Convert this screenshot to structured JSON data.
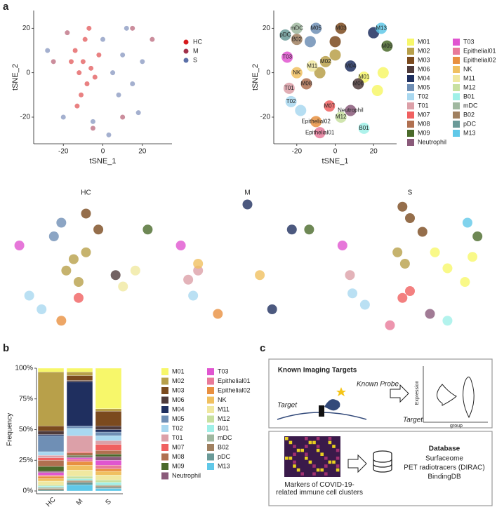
{
  "panel_labels": [
    "a",
    "b",
    "c"
  ],
  "chart_data": [
    {
      "type": "scatter",
      "xlabel": "tSNE_1",
      "ylabel": "tSNE_2",
      "xlim": [
        -35,
        35
      ],
      "ylim": [
        -32,
        28
      ],
      "xticks": [
        -20,
        0,
        20
      ],
      "yticks": [
        -20,
        0,
        20
      ],
      "legend": "right",
      "series": [
        {
          "name": "HC",
          "color": "#d7191c",
          "x": [
            -12,
            -10,
            -8,
            -14,
            -6,
            -11,
            -9,
            -4,
            -16,
            -13,
            -7,
            -2
          ],
          "y": [
            0,
            5,
            -5,
            10,
            2,
            -10,
            15,
            -2,
            5,
            -15,
            20,
            8
          ]
        },
        {
          "name": "M",
          "color": "#a0304a",
          "x": [
            -25,
            10,
            -18,
            25,
            -5,
            15
          ],
          "y": [
            5,
            -20,
            18,
            15,
            -25,
            20
          ]
        },
        {
          "name": "S",
          "color": "#5a6fa8",
          "x": [
            5,
            10,
            15,
            0,
            20,
            -20,
            -28,
            8,
            18,
            -5,
            12,
            3
          ],
          "y": [
            0,
            8,
            -5,
            15,
            5,
            -20,
            10,
            -10,
            -18,
            -22,
            20,
            -28
          ]
        }
      ]
    },
    {
      "type": "scatter",
      "xlabel": "tSNE_1",
      "ylabel": "tSNE_2",
      "xlim": [
        -32,
        32
      ],
      "ylim": [
        -32,
        28
      ],
      "xticks": [
        -20,
        0,
        20
      ],
      "yticks": [
        -20,
        0,
        20
      ],
      "legend": "right",
      "point_labels": true,
      "series": [
        {
          "name": "M01",
          "color": "#f7f76a",
          "x": [
            15,
            22,
            25
          ],
          "y": [
            -2,
            -8,
            0
          ]
        },
        {
          "name": "M02",
          "color": "#b8a04a",
          "x": [
            -5,
            -8,
            0
          ],
          "y": [
            5,
            0,
            8
          ]
        },
        {
          "name": "M03",
          "color": "#7b4a1e",
          "x": [
            3,
            0
          ],
          "y": [
            20,
            14
          ]
        },
        {
          "name": "M06",
          "color": "#4f3b3b",
          "x": [
            12
          ],
          "y": [
            -5
          ]
        },
        {
          "name": "M04",
          "color": "#1f2f5f",
          "x": [
            8,
            20
          ],
          "y": [
            3,
            18
          ]
        },
        {
          "name": "M05",
          "color": "#6f8fb5",
          "x": [
            -10,
            -13
          ],
          "y": [
            20,
            14
          ]
        },
        {
          "name": "T02",
          "color": "#a9d8f0",
          "x": [
            -23,
            -18
          ],
          "y": [
            -13,
            -17
          ]
        },
        {
          "name": "T01",
          "color": "#dca0a8",
          "x": [
            -24
          ],
          "y": [
            -7
          ]
        },
        {
          "name": "M07",
          "color": "#f06060",
          "x": [
            -3
          ],
          "y": [
            -15
          ]
        },
        {
          "name": "M08",
          "color": "#b07050",
          "x": [
            -15
          ],
          "y": [
            -5
          ]
        },
        {
          "name": "M09",
          "color": "#4a6a2a",
          "x": [
            27
          ],
          "y": [
            12
          ]
        },
        {
          "name": "Neutrophil",
          "color": "#8a5a7a",
          "x": [
            8
          ],
          "y": [
            -17
          ]
        },
        {
          "name": "T03",
          "color": "#e055d0",
          "x": [
            -25
          ],
          "y": [
            7
          ]
        },
        {
          "name": "Epithelial01",
          "color": "#e87a9a",
          "x": [
            -8
          ],
          "y": [
            -27
          ]
        },
        {
          "name": "Epithelial02",
          "color": "#e89040",
          "x": [
            -10
          ],
          "y": [
            -22
          ]
        },
        {
          "name": "NK",
          "color": "#f0c060",
          "x": [
            -20
          ],
          "y": [
            0
          ]
        },
        {
          "name": "M11",
          "color": "#f0e8a0",
          "x": [
            -12
          ],
          "y": [
            3
          ]
        },
        {
          "name": "M12",
          "color": "#c8e0a0",
          "x": [
            3
          ],
          "y": [
            -20
          ]
        },
        {
          "name": "B01",
          "color": "#a0f0e8",
          "x": [
            15
          ],
          "y": [
            -25
          ]
        },
        {
          "name": "mDC",
          "color": "#a0b8a0",
          "x": [
            -20
          ],
          "y": [
            20
          ]
        },
        {
          "name": "B02",
          "color": "#a08060",
          "x": [
            -20
          ],
          "y": [
            15
          ]
        },
        {
          "name": "pDC",
          "color": "#6a9a98",
          "x": [
            -26
          ],
          "y": [
            17
          ]
        },
        {
          "name": "M13",
          "color": "#60c8e8",
          "x": [
            24
          ],
          "y": [
            20
          ]
        }
      ]
    },
    {
      "type": "scatter",
      "title": "HC",
      "xlim": [
        -32,
        32
      ],
      "ylim": [
        -32,
        28
      ],
      "series": [
        {
          "color": "#b8a04a",
          "x": [
            -5,
            -8,
            0,
            -3
          ],
          "y": [
            2,
            -3,
            5,
            -8
          ]
        },
        {
          "color": "#6f8fb5",
          "x": [
            -10,
            -13
          ],
          "y": [
            18,
            12
          ]
        },
        {
          "color": "#7b4a1e",
          "x": [
            0,
            5
          ],
          "y": [
            22,
            15
          ]
        },
        {
          "color": "#4a6a2a",
          "x": [
            25
          ],
          "y": [
            15
          ]
        },
        {
          "color": "#a9d8f0",
          "x": [
            -23,
            -18
          ],
          "y": [
            -14,
            -20
          ]
        },
        {
          "color": "#e055d0",
          "x": [
            -27
          ],
          "y": [
            8
          ]
        },
        {
          "color": "#f0e8a0",
          "x": [
            20,
            15
          ],
          "y": [
            -3,
            -10
          ]
        },
        {
          "color": "#4f3b3b",
          "x": [
            12
          ],
          "y": [
            -5
          ]
        },
        {
          "color": "#f06060",
          "x": [
            -3
          ],
          "y": [
            -15
          ]
        },
        {
          "color": "#e89040",
          "x": [
            -10
          ],
          "y": [
            -25
          ]
        }
      ]
    },
    {
      "type": "scatter",
      "title": "M",
      "xlim": [
        -32,
        32
      ],
      "ylim": [
        -32,
        28
      ],
      "series": [
        {
          "color": "#1f2f5f",
          "x": [
            10,
            18,
            0
          ],
          "y": [
            -20,
            15,
            26
          ]
        },
        {
          "color": "#dca0a8",
          "x": [
            -24,
            -20
          ],
          "y": [
            -7,
            -3
          ]
        },
        {
          "color": "#a9d8f0",
          "x": [
            -22
          ],
          "y": [
            -14
          ]
        },
        {
          "color": "#4a6a2a",
          "x": [
            25
          ],
          "y": [
            15
          ]
        },
        {
          "color": "#e89040",
          "x": [
            -12
          ],
          "y": [
            -22
          ]
        },
        {
          "color": "#e055d0",
          "x": [
            -27
          ],
          "y": [
            8
          ]
        },
        {
          "color": "#f0c060",
          "x": [
            -20,
            5
          ],
          "y": [
            0,
            -5
          ]
        }
      ]
    },
    {
      "type": "scatter",
      "title": "S",
      "xlim": [
        -32,
        32
      ],
      "ylim": [
        -32,
        28
      ],
      "series": [
        {
          "color": "#f7f76a",
          "x": [
            15,
            22,
            25,
            10
          ],
          "y": [
            -2,
            -8,
            3,
            5
          ]
        },
        {
          "color": "#7b4a1e",
          "x": [
            0,
            5,
            -3
          ],
          "y": [
            20,
            14,
            25
          ]
        },
        {
          "color": "#b8a04a",
          "x": [
            -5,
            -2
          ],
          "y": [
            5,
            0
          ]
        },
        {
          "color": "#a9d8f0",
          "x": [
            -23,
            -18
          ],
          "y": [
            -13,
            -18
          ]
        },
        {
          "color": "#dca0a8",
          "x": [
            -24
          ],
          "y": [
            -5
          ]
        },
        {
          "color": "#f06060",
          "x": [
            -3,
            0
          ],
          "y": [
            -15,
            -12
          ]
        },
        {
          "color": "#e055d0",
          "x": [
            -27
          ],
          "y": [
            8
          ]
        },
        {
          "color": "#e87a9a",
          "x": [
            -8
          ],
          "y": [
            -27
          ]
        },
        {
          "color": "#8a5a7a",
          "x": [
            8
          ],
          "y": [
            -22
          ]
        },
        {
          "color": "#a0f0e8",
          "x": [
            15
          ],
          "y": [
            -25
          ]
        },
        {
          "color": "#60c8e8",
          "x": [
            23
          ],
          "y": [
            18
          ]
        },
        {
          "color": "#4a6a2a",
          "x": [
            27
          ],
          "y": [
            12
          ]
        }
      ]
    },
    {
      "type": "bar",
      "stacked": true,
      "ylabel": "Frequency",
      "categories": [
        "HC",
        "M",
        "S"
      ],
      "ylim": [
        0,
        100
      ],
      "yticks": [
        {
          "value": 0,
          "label": "0%"
        },
        {
          "value": 25,
          "label": "25%"
        },
        {
          "value": 50,
          "label": "50%"
        },
        {
          "value": 75,
          "label": "75%"
        },
        {
          "value": 100,
          "label": "100%"
        }
      ],
      "series": [
        {
          "name": "M01",
          "color": "#f7f76a",
          "values": [
            3,
            3,
            33
          ]
        },
        {
          "name": "M02",
          "color": "#b8a04a",
          "values": [
            44,
            3,
            2
          ]
        },
        {
          "name": "M03",
          "color": "#7b4a1e",
          "values": [
            4,
            4,
            12
          ]
        },
        {
          "name": "M06",
          "color": "#4f3b3b",
          "values": [
            3,
            1,
            3
          ]
        },
        {
          "name": "M04",
          "color": "#1f2f5f",
          "values": [
            1,
            36,
            2
          ]
        },
        {
          "name": "M05",
          "color": "#6f8fb5",
          "values": [
            13,
            2,
            3
          ]
        },
        {
          "name": "T02",
          "color": "#a9d8f0",
          "values": [
            3,
            6,
            4
          ]
        },
        {
          "name": "T01",
          "color": "#dca0a8",
          "values": [
            2,
            13,
            3
          ]
        },
        {
          "name": "M07",
          "color": "#f06060",
          "values": [
            2,
            1,
            5
          ]
        },
        {
          "name": "M08",
          "color": "#b07050",
          "values": [
            5,
            2,
            3
          ]
        },
        {
          "name": "M09",
          "color": "#4a6a2a",
          "values": [
            4,
            1,
            2
          ]
        },
        {
          "name": "Neutrophil",
          "color": "#8a5a7a",
          "values": [
            1,
            1,
            3
          ]
        },
        {
          "name": "T03",
          "color": "#e055d0",
          "values": [
            2,
            1,
            4
          ]
        },
        {
          "name": "Epithelial01",
          "color": "#e87a9a",
          "values": [
            1,
            2,
            3
          ]
        },
        {
          "name": "Epithelial02",
          "color": "#e89040",
          "values": [
            2,
            3,
            2
          ]
        },
        {
          "name": "NK",
          "color": "#f0c060",
          "values": [
            2,
            4,
            3
          ]
        },
        {
          "name": "M11",
          "color": "#f0e8a0",
          "values": [
            3,
            5,
            4
          ]
        },
        {
          "name": "M12",
          "color": "#c8e0a0",
          "values": [
            1,
            2,
            2
          ]
        },
        {
          "name": "B01",
          "color": "#a0f0e8",
          "values": [
            1,
            1,
            2
          ]
        },
        {
          "name": "mDC",
          "color": "#a0b8a0",
          "values": [
            1,
            1,
            1
          ]
        },
        {
          "name": "B02",
          "color": "#a08060",
          "values": [
            1,
            1,
            1
          ]
        },
        {
          "name": "pDC",
          "color": "#6a9a98",
          "values": [
            1,
            2,
            1
          ]
        },
        {
          "name": "M13",
          "color": "#60c8e8",
          "values": [
            0,
            5,
            2
          ]
        }
      ]
    }
  ],
  "diagram": {
    "imaging": {
      "title": "Known Imaging Targets",
      "probe": "Known Probe",
      "target": "Target",
      "violin_target": "Target",
      "violin_ylabel": "Expression",
      "violin_xlabel": "group"
    },
    "database": {
      "markers": "Markers of COVID-19-related immune cell clusters",
      "title": "Database",
      "items": [
        "Surfaceome",
        "PET radiotracers (DIRAC)",
        "BindingDB"
      ]
    }
  }
}
